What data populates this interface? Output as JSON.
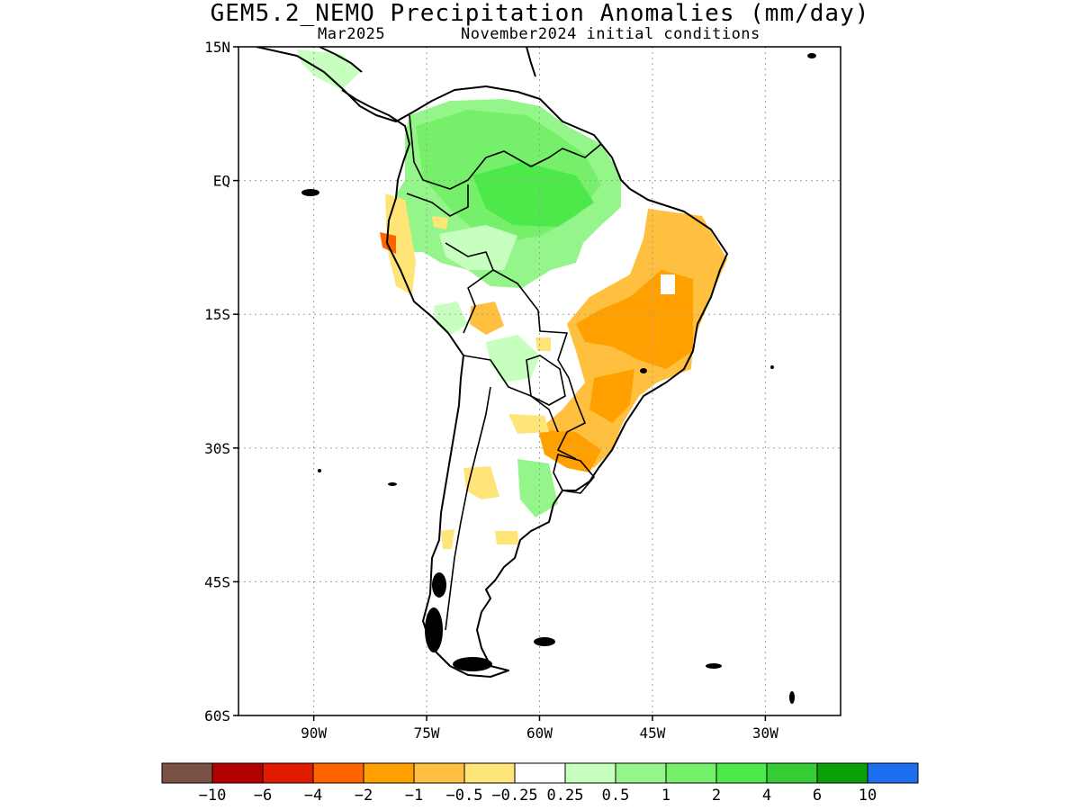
{
  "title": "GEM5.2_NEMO Precipitation Anomalies (mm/day)",
  "subtitle_left": "Mar2025",
  "subtitle_right": "November2024 initial conditions",
  "lat_ticks": [
    {
      "label": "15N",
      "lat": 15
    },
    {
      "label": "EQ",
      "lat": 0
    },
    {
      "label": "15S",
      "lat": -15
    },
    {
      "label": "30S",
      "lat": -30
    },
    {
      "label": "45S",
      "lat": -45
    },
    {
      "label": "60S",
      "lat": -60
    }
  ],
  "lon_ticks": [
    {
      "label": "90W",
      "lon": -90
    },
    {
      "label": "75W",
      "lon": -75
    },
    {
      "label": "60W",
      "lon": -60
    },
    {
      "label": "45W",
      "lon": -45
    },
    {
      "label": "30W",
      "lon": -30
    }
  ],
  "extent": {
    "lon_min": -100,
    "lon_max": -20,
    "lat_min": -60,
    "lat_max": 15
  },
  "colorbar": {
    "colors": [
      "#7b5146",
      "#b30000",
      "#e11b00",
      "#ff6400",
      "#ffa000",
      "#ffc040",
      "#ffe478",
      "#ffffff",
      "#c6ffbe",
      "#94f58a",
      "#76f06a",
      "#4de84a",
      "#36cc36",
      "#0aa00a",
      "#1e6ef0"
    ],
    "labels": [
      "−10",
      "−6",
      "−4",
      "−2",
      "−1",
      "−0.5",
      "−0.25",
      "0.25",
      "0.5",
      "1",
      "2",
      "4",
      "6",
      "10"
    ]
  }
}
